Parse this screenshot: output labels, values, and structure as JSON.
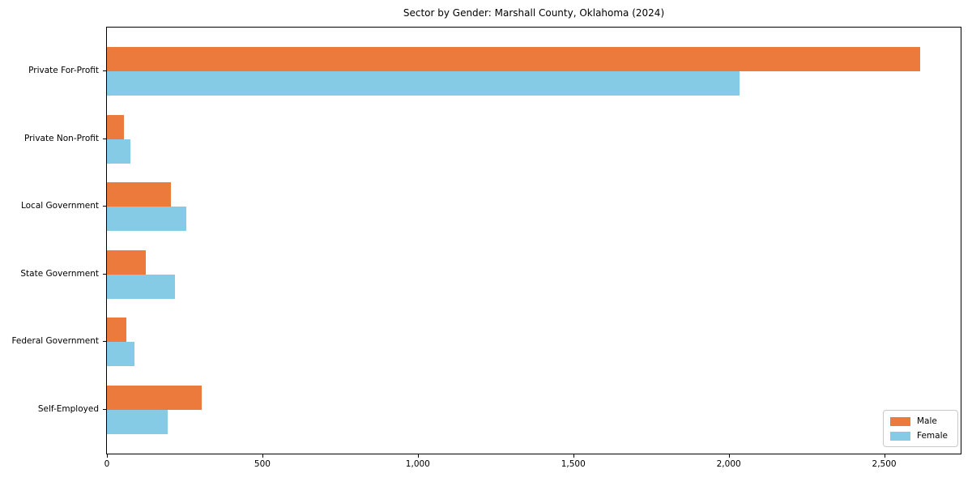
{
  "chart_data": {
    "type": "bar",
    "orientation": "horizontal",
    "title": "Sector by Gender: Marshall County, Oklahoma (2024)",
    "categories": [
      "Private For-Profit",
      "Private Non-Profit",
      "Local Government",
      "State Government",
      "Federal Government",
      "Self-Employed"
    ],
    "series": [
      {
        "name": "Male",
        "color": "#ec7a3c",
        "values": [
          2615,
          55,
          205,
          125,
          62,
          305
        ]
      },
      {
        "name": "Female",
        "color": "#85cbe6",
        "values": [
          2035,
          75,
          255,
          220,
          88,
          195
        ]
      }
    ],
    "xlabel": "",
    "ylabel": "",
    "xlim": [
      0,
      2746
    ],
    "xticks": [
      {
        "value": 0,
        "label": "0"
      },
      {
        "value": 500,
        "label": "500"
      },
      {
        "value": 1000,
        "label": "1,000"
      },
      {
        "value": 1500,
        "label": "1,500"
      },
      {
        "value": 2000,
        "label": "2,000"
      },
      {
        "value": 2500,
        "label": "2,500"
      }
    ],
    "grid": false,
    "legend": {
      "position": "lower right",
      "entries": [
        "Male",
        "Female"
      ]
    }
  },
  "colors": {
    "background": "#ffffff",
    "spine": "#000000",
    "text": "#000000",
    "legend_border": "#c9c9c9"
  }
}
